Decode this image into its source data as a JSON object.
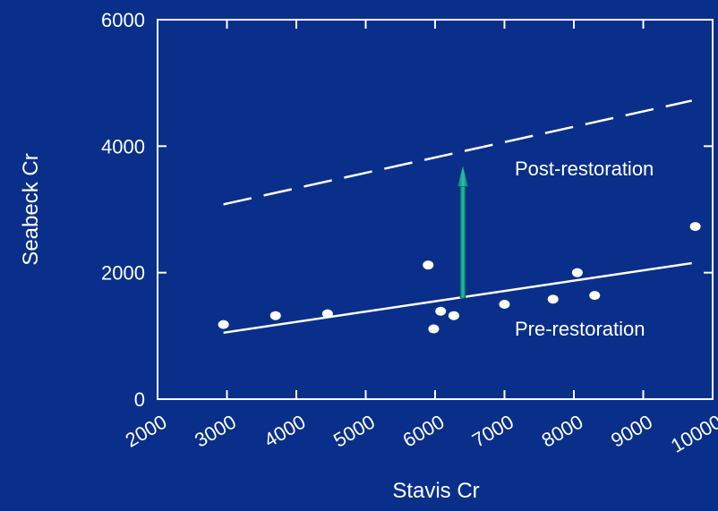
{
  "chart_data": {
    "type": "scatter",
    "xlabel": "Stavis Cr",
    "ylabel": "Seabeck Cr",
    "xlim": [
      2000,
      10000
    ],
    "ylim": [
      0,
      6000
    ],
    "x_ticks": [
      "2000",
      "3000",
      "4000",
      "5000",
      "6000",
      "7000",
      "8000",
      "9000",
      "10000"
    ],
    "y_ticks": [
      "0",
      "2000",
      "4000",
      "6000"
    ],
    "grid": false,
    "points": [
      {
        "x": 2950,
        "y": 1180
      },
      {
        "x": 3700,
        "y": 1320
      },
      {
        "x": 4450,
        "y": 1350
      },
      {
        "x": 5900,
        "y": 2120
      },
      {
        "x": 5980,
        "y": 1110
      },
      {
        "x": 6080,
        "y": 1390
      },
      {
        "x": 6270,
        "y": 1320
      },
      {
        "x": 7000,
        "y": 1500
      },
      {
        "x": 7700,
        "y": 1580
      },
      {
        "x": 8050,
        "y": 2000
      },
      {
        "x": 8300,
        "y": 1640
      },
      {
        "x": 9750,
        "y": 2730
      }
    ],
    "lines": [
      {
        "label": "Pre-restoration",
        "style": "solid",
        "x": [
          2950,
          9700
        ],
        "y": [
          1050,
          2150
        ]
      },
      {
        "label": "Post-restoration",
        "style": "dashed",
        "x": [
          2950,
          9700
        ],
        "y": [
          3080,
          4720
        ]
      }
    ],
    "arrow": {
      "x": 6400,
      "y_from": 1600,
      "y_to": 3700
    },
    "colors": {
      "background": "#0a2f8a",
      "foreground": "#ffffff",
      "arrow": "#14a39a"
    }
  }
}
